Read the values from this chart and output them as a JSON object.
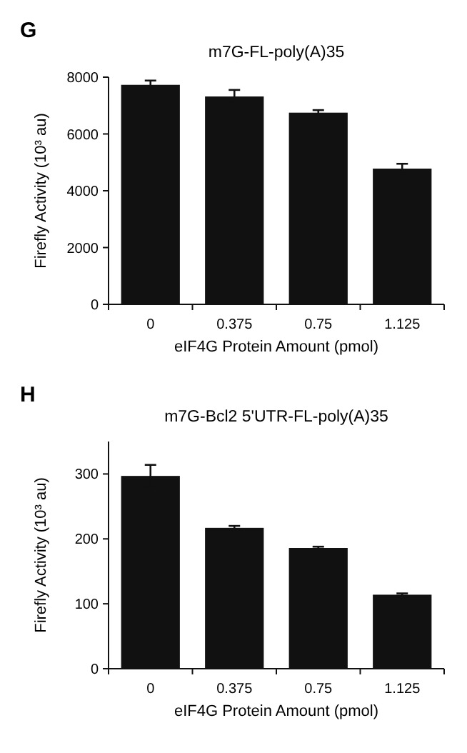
{
  "chart_data": [
    {
      "type": "bar",
      "title": "m7G-FL-poly(A)35",
      "xlabel": "eIF4G Protein Amount (pmol)",
      "ylabel": "Firefly Activity (10³ au)",
      "annotations": [
        "G"
      ],
      "categories": [
        "0",
        "0.375",
        "0.75",
        "1.125"
      ],
      "values": [
        7730,
        7320,
        6750,
        4780
      ],
      "errors": [
        150,
        230,
        90,
        170
      ],
      "color": "#111111",
      "ylim": [
        0,
        8000
      ],
      "yticks": [
        0,
        2000,
        4000,
        6000,
        8000
      ],
      "grid": false
    },
    {
      "type": "bar",
      "title": "m7G-Bcl2 5'UTR-FL-poly(A)35",
      "xlabel": "eIF4G Protein Amount (pmol)",
      "ylabel": "Firefly Activity (10³ au)",
      "annotations": [
        "H"
      ],
      "categories": [
        "0",
        "0.375",
        "0.75",
        "1.125"
      ],
      "values": [
        297,
        217,
        186,
        114
      ],
      "errors": [
        17,
        3,
        2,
        2
      ],
      "color": "#111111",
      "ylim": [
        0,
        350
      ],
      "yticks": [
        0,
        100,
        200,
        300
      ],
      "grid": false
    }
  ]
}
